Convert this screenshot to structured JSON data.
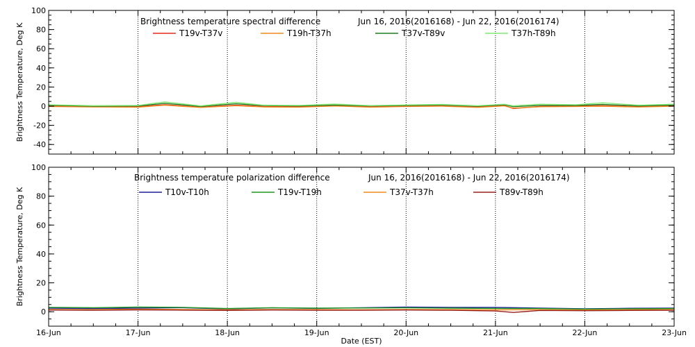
{
  "chart_data": [
    {
      "type": "line",
      "title": "Brightness temperature spectral difference",
      "date_range": "Jun 16, 2016(2016168) - Jun 22, 2016(2016174)",
      "ylabel": "Brightness Temperature, Deg K",
      "xlabel": "",
      "xlim": [
        0,
        7
      ],
      "ylim": [
        -50,
        100
      ],
      "yticks": [
        -40,
        -20,
        0,
        20,
        40,
        60,
        80,
        100
      ],
      "xticks": [
        0,
        1,
        2,
        3,
        4,
        5,
        6,
        7
      ],
      "grid": "vertical-dotted-daily",
      "legend": "top",
      "series": [
        {
          "name": "T19v-T37v",
          "color": "#e8281e",
          "points": [
            [
              0,
              0.5
            ],
            [
              0.5,
              -0.5
            ],
            [
              1,
              -0.5
            ],
            [
              1.3,
              1.5
            ],
            [
              1.7,
              -1
            ],
            [
              2.1,
              1
            ],
            [
              2.4,
              -0.3
            ],
            [
              2.8,
              -0.5
            ],
            [
              3.2,
              0.6
            ],
            [
              3.6,
              -0.7
            ],
            [
              4,
              0.2
            ],
            [
              4.4,
              0.5
            ],
            [
              4.8,
              -0.7
            ],
            [
              5.1,
              0.8
            ],
            [
              5.2,
              -2.5
            ],
            [
              5.5,
              -0.2
            ],
            [
              5.9,
              0.2
            ],
            [
              6.2,
              0.5
            ],
            [
              6.6,
              -0.5
            ],
            [
              7,
              0.5
            ]
          ]
        },
        {
          "name": "T19h-T37h",
          "color": "#f0871e",
          "points": [
            [
              0,
              -0.3
            ],
            [
              0.5,
              -0.8
            ],
            [
              1,
              -1
            ],
            [
              1.3,
              1
            ],
            [
              1.7,
              -1.3
            ],
            [
              2.1,
              0.5
            ],
            [
              2.4,
              -0.8
            ],
            [
              2.8,
              -1
            ],
            [
              3.2,
              0.2
            ],
            [
              3.6,
              -1
            ],
            [
              4,
              -0.3
            ],
            [
              4.4,
              0.1
            ],
            [
              4.8,
              -1.2
            ],
            [
              5.1,
              0.3
            ],
            [
              5.2,
              -2
            ],
            [
              5.5,
              -0.6
            ],
            [
              5.9,
              -0.3
            ],
            [
              6.2,
              0
            ],
            [
              6.6,
              -0.9
            ],
            [
              7,
              0
            ]
          ]
        },
        {
          "name": "T37v-T89v",
          "color": "#1e7d1e",
          "points": [
            [
              0,
              1
            ],
            [
              0.5,
              0
            ],
            [
              1,
              0.2
            ],
            [
              1.3,
              3
            ],
            [
              1.7,
              -0.2
            ],
            [
              2.1,
              2.5
            ],
            [
              2.4,
              0.6
            ],
            [
              2.8,
              0.2
            ],
            [
              3.2,
              1.2
            ],
            [
              3.6,
              0.2
            ],
            [
              4,
              0.8
            ],
            [
              4.4,
              1.2
            ],
            [
              4.8,
              0
            ],
            [
              5.1,
              1.5
            ],
            [
              5.2,
              -0.5
            ],
            [
              5.5,
              0.8
            ],
            [
              5.9,
              0.8
            ],
            [
              6.2,
              1.8
            ],
            [
              6.6,
              0.3
            ],
            [
              7,
              1.2
            ]
          ]
        },
        {
          "name": "T37h-T89h",
          "color": "#82e673",
          "points": [
            [
              0,
              1.5
            ],
            [
              0.5,
              0.5
            ],
            [
              1,
              0.8
            ],
            [
              1.3,
              4.5
            ],
            [
              1.7,
              0.3
            ],
            [
              2.1,
              4
            ],
            [
              2.4,
              1
            ],
            [
              2.8,
              0.8
            ],
            [
              3.2,
              2.2
            ],
            [
              3.6,
              0.6
            ],
            [
              4,
              1.3
            ],
            [
              4.4,
              1.8
            ],
            [
              4.8,
              0.4
            ],
            [
              5.1,
              2
            ],
            [
              5.2,
              0.3
            ],
            [
              5.5,
              2
            ],
            [
              5.9,
              1.5
            ],
            [
              6.2,
              3.5
            ],
            [
              6.6,
              1
            ],
            [
              7,
              2
            ]
          ]
        }
      ]
    },
    {
      "type": "line",
      "title": "Brightness temperature polarization difference",
      "date_range": "Jun 16, 2016(2016168) - Jun 22, 2016(2016174)",
      "ylabel": "Brightness Temperature, Deg K",
      "xlabel": "Date (EST)",
      "xlim": [
        0,
        7
      ],
      "ylim": [
        -10,
        100
      ],
      "yticks": [
        0,
        20,
        40,
        60,
        80,
        100
      ],
      "xticks": [
        0,
        1,
        2,
        3,
        4,
        5,
        6,
        7
      ],
      "xtick_labels": [
        "16-Jun",
        "17-Jun",
        "18-Jun",
        "19-Jun",
        "20-Jun",
        "21-Jun",
        "22-Jun",
        "23-Jun"
      ],
      "grid": "vertical-dotted-daily",
      "legend": "top",
      "series": [
        {
          "name": "T10v-T10h",
          "color": "#1e1e96",
          "points": [
            [
              0,
              2.5
            ],
            [
              0.5,
              2.2
            ],
            [
              1,
              2.5
            ],
            [
              1.5,
              2.8
            ],
            [
              2,
              2
            ],
            [
              2.5,
              2.7
            ],
            [
              3,
              2.3
            ],
            [
              3.5,
              2.8
            ],
            [
              4,
              3.2
            ],
            [
              4.5,
              3
            ],
            [
              5,
              3
            ],
            [
              5.5,
              2.5
            ],
            [
              6,
              2
            ],
            [
              6.5,
              2.4
            ],
            [
              7,
              2.5
            ]
          ]
        },
        {
          "name": "T19v-T19h",
          "color": "#1e961e",
          "points": [
            [
              0,
              3
            ],
            [
              0.5,
              2.8
            ],
            [
              1,
              3.2
            ],
            [
              1.5,
              3
            ],
            [
              2,
              2.2
            ],
            [
              2.5,
              2.8
            ],
            [
              3,
              2.5
            ],
            [
              3.5,
              2.6
            ],
            [
              4,
              2.7
            ],
            [
              4.5,
              2.5
            ],
            [
              5,
              2.3
            ],
            [
              5.5,
              2.2
            ],
            [
              6,
              1.8
            ],
            [
              6.5,
              2
            ],
            [
              7,
              2.2
            ]
          ]
        },
        {
          "name": "T37v-T37h",
          "color": "#f08c1e",
          "points": [
            [
              0,
              1.6
            ],
            [
              0.5,
              1.5
            ],
            [
              1,
              1.8
            ],
            [
              1.5,
              1.6
            ],
            [
              2,
              1.4
            ],
            [
              2.5,
              1.6
            ],
            [
              3,
              1.5
            ],
            [
              3.5,
              1.4
            ],
            [
              4,
              1.6
            ],
            [
              4.5,
              1.5
            ],
            [
              5,
              1.3
            ],
            [
              5.5,
              1.4
            ],
            [
              6,
              1.2
            ],
            [
              6.5,
              1.4
            ],
            [
              7,
              1.5
            ]
          ]
        },
        {
          "name": "T89v-T89h",
          "color": "#961e1e",
          "points": [
            [
              0,
              1.2
            ],
            [
              0.5,
              1
            ],
            [
              1,
              1.3
            ],
            [
              1.5,
              1.1
            ],
            [
              2,
              0.9
            ],
            [
              2.5,
              1.2
            ],
            [
              3,
              1
            ],
            [
              3.5,
              1
            ],
            [
              4,
              1.2
            ],
            [
              4.5,
              1
            ],
            [
              5,
              0.5
            ],
            [
              5.2,
              -0.5
            ],
            [
              5.5,
              0.9
            ],
            [
              6,
              0.7
            ],
            [
              6.5,
              0.9
            ],
            [
              7,
              1
            ]
          ]
        }
      ]
    }
  ]
}
